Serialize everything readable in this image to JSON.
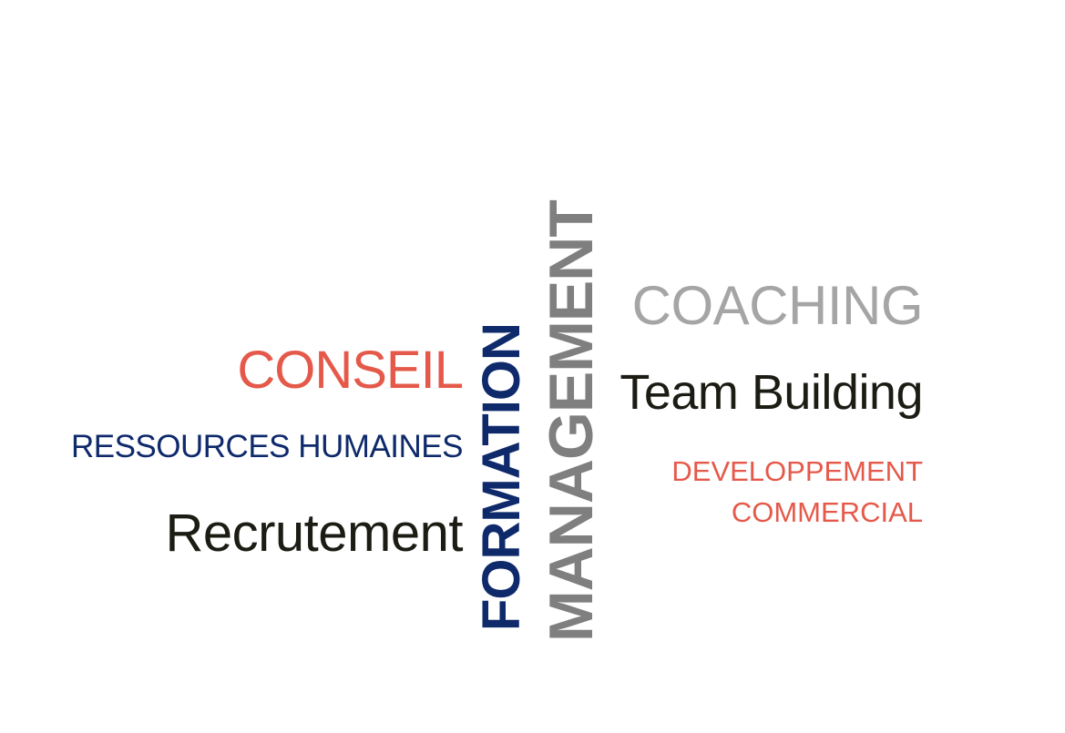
{
  "words": {
    "conseil": "CONSEIL",
    "ressources_humaines": "RESSOURCES HUMAINES",
    "recrutement": "Recrutement",
    "formation": "FORMATION",
    "management": "MANAGEMENT",
    "coaching": "COACHING",
    "team_building": "Team Building",
    "developpement": "DEVELOPPEMENT",
    "commercial": "COMMERCIAL"
  },
  "colors": {
    "coral": "#e5594a",
    "navy": "#0f2a6b",
    "dark": "#1c1c14",
    "gray": "#7f7f7f",
    "light_gray": "#a5a5a5"
  }
}
